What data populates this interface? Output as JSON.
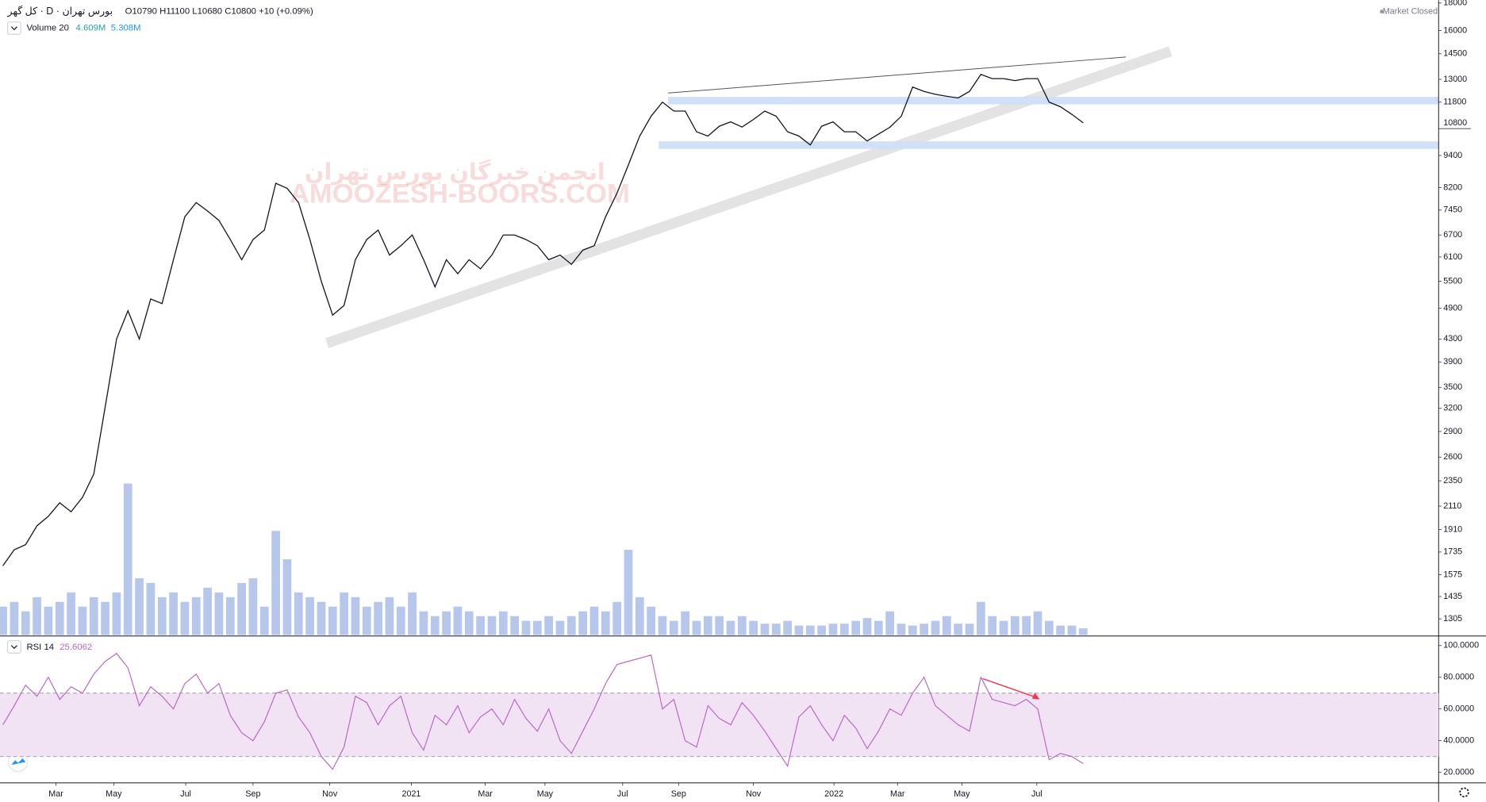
{
  "header": {
    "title": "کل گهر · D · بورس تهران",
    "ohlc": [
      {
        "value": 10790,
        "label": "O10790"
      },
      {
        "value": 11100,
        "label": "H11100"
      },
      {
        "value": 10680,
        "label": "L10680"
      },
      {
        "value": 10800,
        "label": "C10800"
      }
    ],
    "change": {
      "value": 10,
      "label": "+10"
    },
    "change_pct": {
      "value": 0.09,
      "label": "(+0.09%)"
    },
    "status": "Market Closed",
    "watermark": "AMOOZESH-BOORS.COM",
    "watermark_fa": "انجمن خبرگان بورس تهران"
  },
  "chart_data": [
    {
      "type": "line",
      "scale": "log",
      "grid": false,
      "xlim": [
        -0.25,
        126.25
      ],
      "ylim": [
        1218,
        18220
      ],
      "yticks": [
        18000,
        16000,
        14500,
        13000,
        11800,
        9400,
        8200,
        7450,
        6700,
        6100,
        5500,
        4900,
        4300,
        3900,
        3500,
        3200,
        2900,
        2600,
        2350,
        2110,
        1910,
        1735,
        1575,
        1435,
        1305
      ],
      "series": [
        {
          "color": "#131722",
          "values": [
            1636,
            1752,
            1790,
            1940,
            2020,
            2140,
            2060,
            2190,
            2420,
            3220,
            4300,
            4850,
            4300,
            5100,
            5000,
            6030,
            7240,
            7690,
            7420,
            7130,
            6570,
            6030,
            6570,
            6840,
            8350,
            8170,
            7690,
            6570,
            5500,
            4760,
            4960,
            6030,
            6570,
            6840,
            6150,
            6400,
            6700,
            6030,
            5370,
            6030,
            5680,
            6030,
            5800,
            6150,
            6700,
            6700,
            6570,
            6400,
            6030,
            6150,
            5910,
            6280,
            6400,
            7240,
            8000,
            9030,
            10210,
            11110,
            11800,
            11360,
            11360,
            10400,
            10210,
            10650,
            10850,
            10610,
            10960,
            11360,
            11110,
            10400,
            10210,
            9830,
            10650,
            10850,
            10400,
            10400,
            10000,
            10300,
            10600,
            11110,
            12580,
            12350,
            12200,
            12100,
            12010,
            12350,
            13280,
            13040,
            13040,
            12930,
            13040,
            13040,
            11800,
            11570,
            11200,
            10800
          ]
        }
      ]
    },
    {
      "type": "bar",
      "title": "Volume 20",
      "color": "#9fb4e6",
      "xlim": [
        -0.25,
        126.25
      ],
      "ylim": [
        0,
        400000000
      ],
      "last_value": {
        "value": 4609000,
        "label": "4.609M",
        "color": "#26a69a"
      },
      "ma_value": {
        "value": 5308000,
        "label": "5.308M",
        "color": "#2196f3"
      },
      "values": [
        19500000,
        22750000,
        16250000,
        26000000,
        19500000,
        22750000,
        29250000,
        19500000,
        26000000,
        22750000,
        29250000,
        104000000,
        39000000,
        35750000,
        26000000,
        29250000,
        22750000,
        26000000,
        32500000,
        29250000,
        26000000,
        35750000,
        39000000,
        19500000,
        71500000,
        52000000,
        29250000,
        26000000,
        22750000,
        19500000,
        29250000,
        26000000,
        19500000,
        22750000,
        26000000,
        19500000,
        29250000,
        16250000,
        13000000,
        16250000,
        19500000,
        16250000,
        13000000,
        13000000,
        16250000,
        13000000,
        9750000,
        9750000,
        13000000,
        9750000,
        13000000,
        16250000,
        19500000,
        16250000,
        22750000,
        58500000,
        26000000,
        19500000,
        13000000,
        9750000,
        16250000,
        9750000,
        13000000,
        13000000,
        9750000,
        13000000,
        9750000,
        7800000,
        7800000,
        9750000,
        6500000,
        6500000,
        6500000,
        7800000,
        7800000,
        9750000,
        11700000,
        9750000,
        16250000,
        7800000,
        6500000,
        7800000,
        9750000,
        13000000,
        7800000,
        7800000,
        22750000,
        13000000,
        9750000,
        13000000,
        13000000,
        16250000,
        9750000,
        6500000,
        6500000,
        4609000
      ]
    },
    {
      "type": "line",
      "title": "RSI 14",
      "grid": false,
      "xlim": [
        -0.25,
        126.25
      ],
      "ylim": [
        13.4,
        104.8
      ],
      "band": [
        30,
        70
      ],
      "band_color": "#f1e3f4",
      "yticks": [
        {
          "value": 100,
          "label": "100.0000"
        },
        {
          "value": 80,
          "label": "80.0000"
        },
        {
          "value": 60,
          "label": "60.0000"
        },
        {
          "value": 40,
          "label": "40.0000"
        },
        {
          "value": 20,
          "label": "20.0000"
        }
      ],
      "xticks": [
        {
          "value": 4.67,
          "label": "Mar"
        },
        {
          "value": 9.75,
          "label": "May"
        },
        {
          "value": 16.08,
          "label": "Jul"
        },
        {
          "value": 22,
          "label": "Sep"
        },
        {
          "value": 28.75,
          "label": "Nov"
        },
        {
          "value": 35.92,
          "label": "2021"
        },
        {
          "value": 42.42,
          "label": "Mar"
        },
        {
          "value": 47.67,
          "label": "May"
        },
        {
          "value": 54.5,
          "label": "Jul"
        },
        {
          "value": 59.42,
          "label": "Sep"
        },
        {
          "value": 66,
          "label": "Nov"
        },
        {
          "value": 73.08,
          "label": "2022"
        },
        {
          "value": 78.67,
          "label": "Mar"
        },
        {
          "value": 84.33,
          "label": "May"
        },
        {
          "value": 90.92,
          "label": "Jul"
        }
      ],
      "series": [
        {
          "color": "#ba68c8",
          "values": [
            50,
            62,
            75,
            68,
            80,
            66,
            74,
            70,
            82,
            90,
            95,
            86,
            62,
            74,
            68,
            60,
            76,
            82,
            70,
            76,
            56,
            45,
            40,
            52,
            70,
            72,
            55,
            45,
            30,
            22,
            36,
            68,
            64,
            50,
            62,
            68,
            45,
            34,
            56,
            50,
            62,
            45,
            55,
            60,
            50,
            66,
            54,
            46,
            60,
            40,
            32,
            46,
            60,
            76,
            88,
            90,
            92,
            94,
            60,
            66,
            40,
            36,
            62,
            54,
            50,
            64,
            56,
            46,
            35,
            24,
            55,
            62,
            50,
            40,
            56,
            48,
            35,
            46,
            60,
            56,
            70,
            80,
            62,
            56,
            50,
            46,
            80,
            66,
            64,
            62,
            66,
            60,
            28,
            32,
            30,
            25.6062
          ]
        }
      ]
    }
  ]
}
